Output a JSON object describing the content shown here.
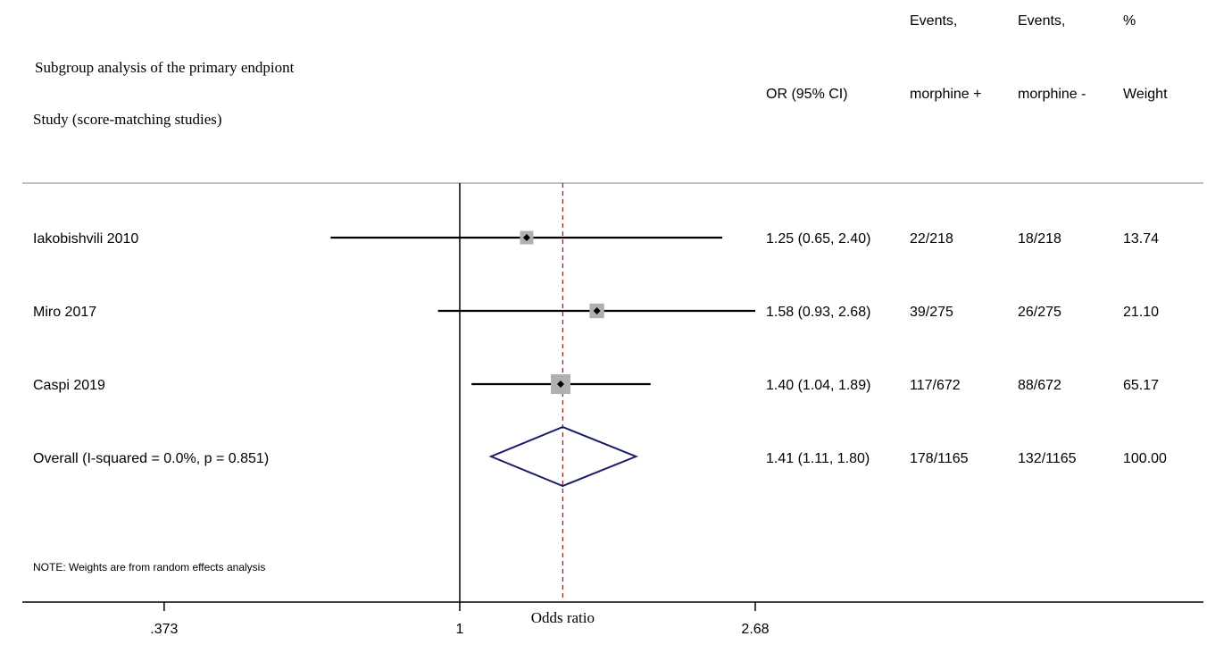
{
  "header": {
    "title": "Subgroup analysis of the primary endpiont",
    "study_label": "Study (score-matching studies)",
    "col_or": "OR (95% CI)",
    "col_events_plus_1": "Events,",
    "col_events_plus_2": "morphine +",
    "col_events_minus_1": "Events,",
    "col_events_minus_2": "morphine -",
    "col_weight_1": "%",
    "col_weight_2": "Weight"
  },
  "note": "NOTE: Weights are from random effects analysis",
  "chart_data": {
    "type": "forest",
    "scale": "log",
    "xlabel": "Odds ratio",
    "x_ticks": [
      0.373,
      1,
      2.68
    ],
    "x_tick_labels": [
      ".373",
      "1",
      "2.68"
    ],
    "null_line": 1,
    "overall_line": 1.41,
    "studies": [
      {
        "name": "Iakobishvili 2010",
        "or": 1.25,
        "lo": 0.65,
        "hi": 2.4,
        "or_text": "1.25 (0.65, 2.40)",
        "events_plus": "22/218",
        "events_minus": "18/218",
        "weight": "13.74",
        "weight_value": 13.74
      },
      {
        "name": "Miro 2017",
        "or": 1.58,
        "lo": 0.93,
        "hi": 2.68,
        "or_text": "1.58 (0.93, 2.68)",
        "events_plus": "39/275",
        "events_minus": "26/275",
        "weight": "21.10",
        "weight_value": 21.1
      },
      {
        "name": "Caspi 2019",
        "or": 1.4,
        "lo": 1.04,
        "hi": 1.89,
        "or_text": "1.40 (1.04, 1.89)",
        "events_plus": "117/672",
        "events_minus": "88/672",
        "weight": "65.17",
        "weight_value": 65.17
      }
    ],
    "overall": {
      "name": "Overall  (I-squared = 0.0%, p = 0.851)",
      "or": 1.41,
      "lo": 1.11,
      "hi": 1.8,
      "or_text": "1.41 (1.11, 1.80)",
      "events_plus": "178/1165",
      "events_minus": "132/1165",
      "weight": "100.00"
    }
  }
}
